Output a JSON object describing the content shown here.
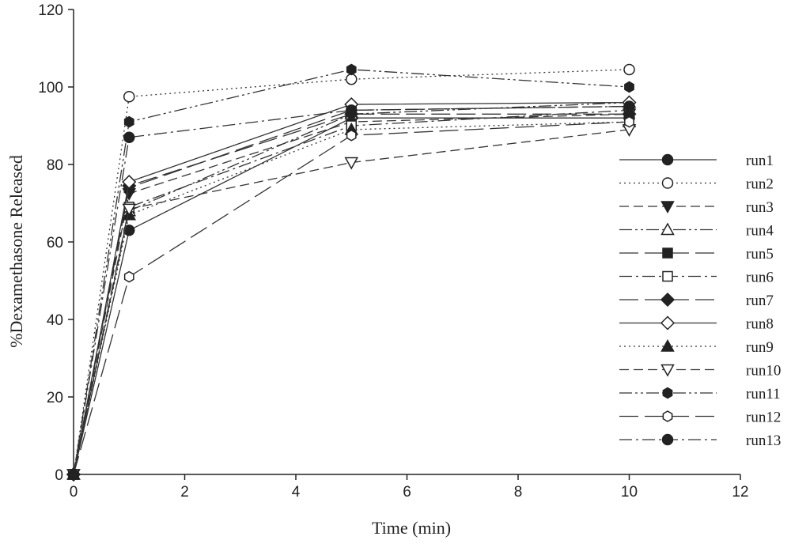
{
  "chart_data": {
    "type": "line",
    "title": "",
    "xlabel": "Time (min)",
    "ylabel": "%Dexamethasone Released",
    "xlim": [
      0,
      12
    ],
    "ylim": [
      0,
      120
    ],
    "xticks": [
      0,
      2,
      4,
      6,
      8,
      10,
      12
    ],
    "yticks": [
      0,
      20,
      40,
      60,
      80,
      100,
      120
    ],
    "grid": false,
    "legend": "right",
    "x": [
      0,
      1,
      5,
      10
    ],
    "series": [
      {
        "name": "run1",
        "values": [
          0,
          63,
          92,
          92
        ],
        "marker": "circle-filled",
        "dash": "solid"
      },
      {
        "name": "run2",
        "values": [
          0,
          97.5,
          102,
          104.5
        ],
        "marker": "circle-open",
        "dash": "dotted"
      },
      {
        "name": "run3",
        "values": [
          0,
          72.5,
          91,
          93
        ],
        "marker": "tri-down-filled",
        "dash": "dash"
      },
      {
        "name": "run4",
        "values": [
          0,
          68,
          93,
          96
        ],
        "marker": "tri-up-open",
        "dash": "dashdotdot"
      },
      {
        "name": "run5",
        "values": [
          0,
          74,
          94,
          95
        ],
        "marker": "square-filled",
        "dash": "longdash"
      },
      {
        "name": "run6",
        "values": [
          0,
          69,
          90,
          94
        ],
        "marker": "square-open",
        "dash": "dashdot"
      },
      {
        "name": "run7",
        "values": [
          0,
          74.5,
          93,
          93
        ],
        "marker": "diamond-filled",
        "dash": "longdash"
      },
      {
        "name": "run8",
        "values": [
          0,
          75.5,
          95.5,
          96
        ],
        "marker": "diamond-open",
        "dash": "solid"
      },
      {
        "name": "run9",
        "values": [
          0,
          67,
          89,
          91
        ],
        "marker": "tri-up-filled",
        "dash": "dotted"
      },
      {
        "name": "run10",
        "values": [
          0,
          68.5,
          80.5,
          89
        ],
        "marker": "tri-down-open",
        "dash": "dash"
      },
      {
        "name": "run11",
        "values": [
          0,
          91,
          104.5,
          100
        ],
        "marker": "hex-filled",
        "dash": "dashdotdot"
      },
      {
        "name": "run12",
        "values": [
          0,
          51,
          87.5,
          91
        ],
        "marker": "hex-open",
        "dash": "longdash"
      },
      {
        "name": "run13",
        "values": [
          0,
          87,
          94,
          95
        ],
        "marker": "circle-filled",
        "dash": "dashdot"
      }
    ]
  }
}
